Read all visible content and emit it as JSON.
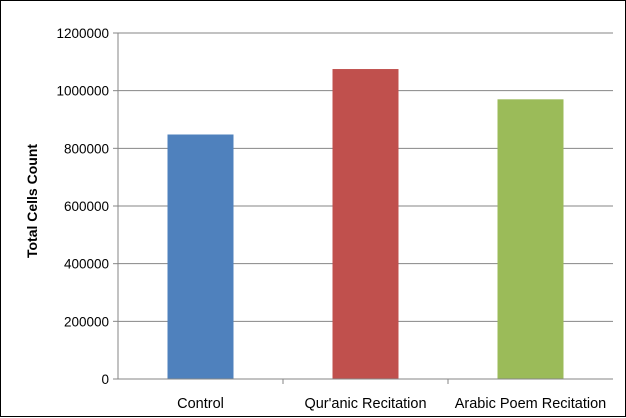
{
  "chart_data": {
    "type": "bar",
    "categories": [
      "Control",
      "Qur'anic Recitation",
      "Arabic Poem Recitation"
    ],
    "values": [
      848000,
      1075000,
      970000
    ],
    "colors": [
      "#4f81bd",
      "#c0504d",
      "#9bbb59"
    ],
    "ylabel": "Total Cells Count",
    "ylim": [
      0,
      1200000
    ],
    "yticks": [
      "0",
      "200000",
      "400000",
      "600000",
      "800000",
      "1000000",
      "1200000"
    ],
    "grid": true,
    "legend": "none"
  }
}
